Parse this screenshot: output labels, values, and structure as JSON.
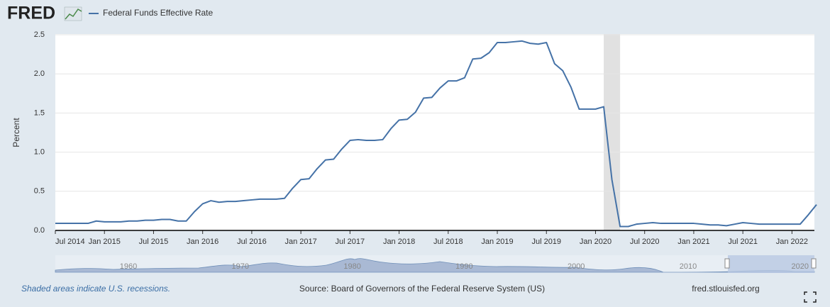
{
  "logo": "FRED",
  "chart_data": {
    "type": "line",
    "y_label": "Percent",
    "x": [
      "2014-07",
      "2014-08",
      "2014-09",
      "2014-10",
      "2014-11",
      "2014-12",
      "2015-01",
      "2015-02",
      "2015-03",
      "2015-04",
      "2015-05",
      "2015-06",
      "2015-07",
      "2015-08",
      "2015-09",
      "2015-10",
      "2015-11",
      "2015-12",
      "2016-01",
      "2016-02",
      "2016-03",
      "2016-04",
      "2016-05",
      "2016-06",
      "2016-07",
      "2016-08",
      "2016-09",
      "2016-10",
      "2016-11",
      "2016-12",
      "2017-01",
      "2017-02",
      "2017-03",
      "2017-04",
      "2017-05",
      "2017-06",
      "2017-07",
      "2017-08",
      "2017-09",
      "2017-10",
      "2017-11",
      "2017-12",
      "2018-01",
      "2018-02",
      "2018-03",
      "2018-04",
      "2018-05",
      "2018-06",
      "2018-07",
      "2018-08",
      "2018-09",
      "2018-10",
      "2018-11",
      "2018-12",
      "2019-01",
      "2019-02",
      "2019-03",
      "2019-04",
      "2019-05",
      "2019-06",
      "2019-07",
      "2019-08",
      "2019-09",
      "2019-10",
      "2019-11",
      "2019-12",
      "2020-01",
      "2020-02",
      "2020-03",
      "2020-04",
      "2020-05",
      "2020-06",
      "2020-07",
      "2020-08",
      "2020-09",
      "2020-10",
      "2020-11",
      "2020-12",
      "2021-01",
      "2021-02",
      "2021-03",
      "2021-04",
      "2021-05",
      "2021-06",
      "2021-07",
      "2021-08",
      "2021-09",
      "2021-10",
      "2021-11",
      "2021-12",
      "2022-01",
      "2022-02",
      "2022-03",
      "2022-04"
    ],
    "series": [
      {
        "name": "Federal Funds Effective Rate",
        "color": "#4572a7",
        "values": [
          0.09,
          0.09,
          0.09,
          0.09,
          0.09,
          0.12,
          0.11,
          0.11,
          0.11,
          0.12,
          0.12,
          0.13,
          0.13,
          0.14,
          0.14,
          0.12,
          0.12,
          0.24,
          0.34,
          0.38,
          0.36,
          0.37,
          0.37,
          0.38,
          0.39,
          0.4,
          0.4,
          0.4,
          0.41,
          0.54,
          0.65,
          0.66,
          0.79,
          0.9,
          0.91,
          1.04,
          1.15,
          1.16,
          1.15,
          1.15,
          1.16,
          1.3,
          1.41,
          1.42,
          1.51,
          1.69,
          1.7,
          1.82,
          1.91,
          1.91,
          1.95,
          2.19,
          2.2,
          2.27,
          2.4,
          2.4,
          2.41,
          2.42,
          2.39,
          2.38,
          2.4,
          2.13,
          2.04,
          1.83,
          1.55,
          1.55,
          1.55,
          1.58,
          0.65,
          0.05,
          0.05,
          0.08,
          0.09,
          0.1,
          0.09,
          0.09,
          0.09,
          0.09,
          0.09,
          0.08,
          0.07,
          0.07,
          0.06,
          0.08,
          0.1,
          0.09,
          0.08,
          0.08,
          0.08,
          0.08,
          0.08,
          0.08,
          0.2,
          0.33
        ]
      }
    ],
    "xlim": [
      "2014-07",
      "2022-04"
    ],
    "xticks": [
      {
        "value": "2014-07",
        "label": "Jul 2014"
      },
      {
        "value": "2015-01",
        "label": "Jan 2015"
      },
      {
        "value": "2015-07",
        "label": "Jul 2015"
      },
      {
        "value": "2016-01",
        "label": "Jan 2016"
      },
      {
        "value": "2016-07",
        "label": "Jul 2016"
      },
      {
        "value": "2017-01",
        "label": "Jan 2017"
      },
      {
        "value": "2017-07",
        "label": "Jul 2017"
      },
      {
        "value": "2018-01",
        "label": "Jan 2018"
      },
      {
        "value": "2018-07",
        "label": "Jul 2018"
      },
      {
        "value": "2019-01",
        "label": "Jan 2019"
      },
      {
        "value": "2019-07",
        "label": "Jul 2019"
      },
      {
        "value": "2020-01",
        "label": "Jan 2020"
      },
      {
        "value": "2020-07",
        "label": "Jul 2020"
      },
      {
        "value": "2021-01",
        "label": "Jan 2021"
      },
      {
        "value": "2021-07",
        "label": "Jul 2021"
      },
      {
        "value": "2022-01",
        "label": "Jan 2022"
      }
    ],
    "ylim": [
      0,
      2.5
    ],
    "yticks": [
      {
        "value": 0,
        "label": "0.0"
      },
      0.5,
      {
        "value": 1,
        "label": "1.0"
      },
      1.5,
      {
        "value": 2,
        "label": "2.0"
      },
      2.5
    ],
    "grid": true,
    "recessions": [
      [
        "2020-02",
        "2020-04"
      ]
    ],
    "recession_color": "#e1e1e1"
  },
  "navigator": {
    "labels": [
      "1960",
      "1970",
      "1980",
      "1990",
      "2000",
      "2010",
      "2020"
    ]
  },
  "footer": {
    "note": "Shaded areas indicate U.S. recessions.",
    "source": "Source: Board of Governors of the Federal Reserve System (US)",
    "site": "fred.stlouisfed.org"
  }
}
